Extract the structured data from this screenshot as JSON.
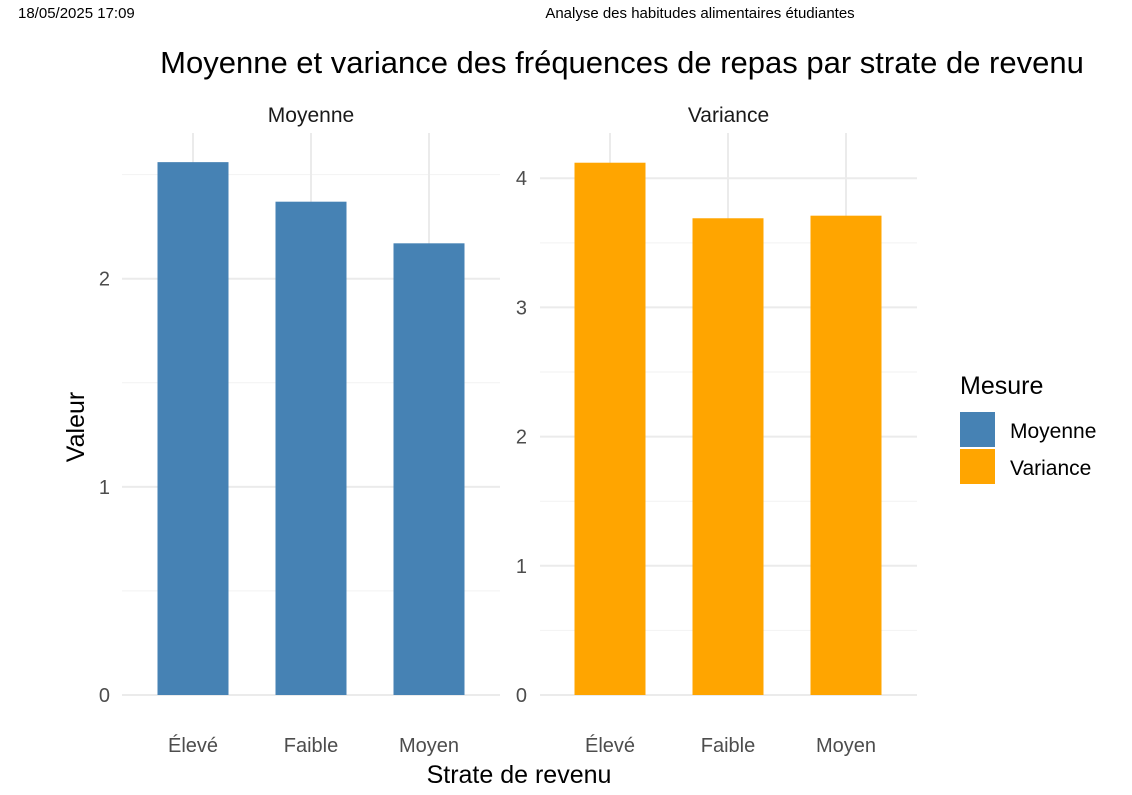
{
  "header": {
    "date": "18/05/2025 17:09",
    "document": "Analyse des habitudes alimentaires étudiantes"
  },
  "chart_data": {
    "type": "bar",
    "title": "Moyenne et variance des fréquences de repas par strate de revenu",
    "xlabel": "Strate de revenu",
    "ylabel": "Valeur",
    "categories": [
      "Élevé",
      "Faible",
      "Moyen"
    ],
    "grid": true,
    "legend": {
      "title": "Mesure",
      "placement": "right",
      "entries": [
        {
          "name": "Moyenne",
          "color": "#4682B4"
        },
        {
          "name": "Variance",
          "color": "#FFA500"
        }
      ]
    },
    "panels": [
      {
        "strip": "Moyenne",
        "color": "#4682B4",
        "values": [
          2.56,
          2.37,
          2.17
        ],
        "ylim": [
          0,
          2.7
        ],
        "major_ticks": [
          0,
          1,
          2
        ],
        "minor_ticks": [
          0.5,
          1.5,
          2.5
        ]
      },
      {
        "strip": "Variance",
        "color": "#FFA500",
        "values": [
          4.12,
          3.69,
          3.71
        ],
        "ylim": [
          0,
          4.35
        ],
        "major_ticks": [
          0,
          1,
          2,
          3,
          4
        ],
        "minor_ticks": [
          0.5,
          1.5,
          2.5,
          3.5
        ]
      }
    ]
  }
}
